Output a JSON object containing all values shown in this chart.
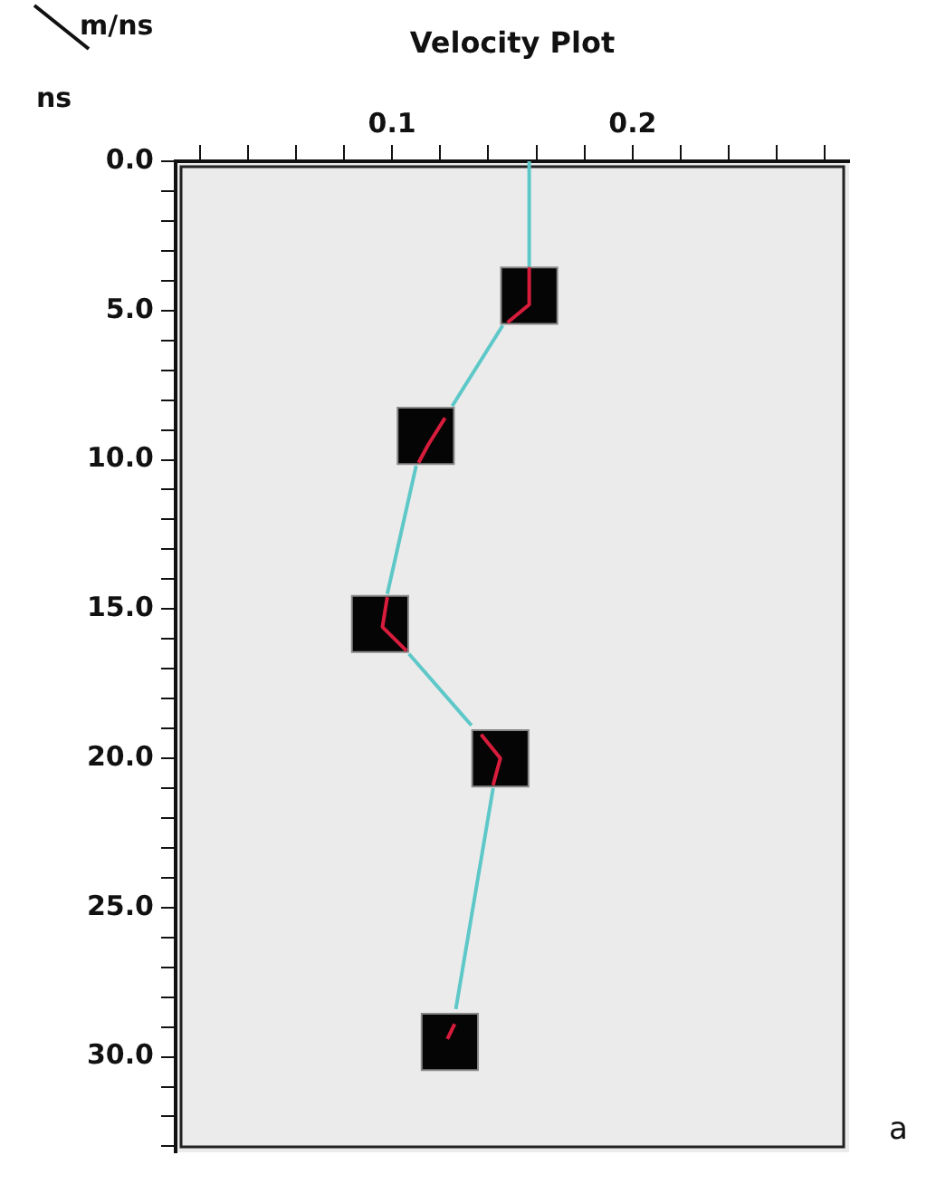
{
  "chart_data": {
    "type": "line",
    "title": "Velocity Plot",
    "xlabel": "m/ns",
    "ylabel": "ns",
    "annotations": [
      "a"
    ],
    "xlim": [
      0.01,
      0.29
    ],
    "ylim": [
      33.2,
      0
    ],
    "xticks": [
      {
        "value": 0.02,
        "label": null
      },
      {
        "value": 0.04,
        "label": null
      },
      {
        "value": 0.06,
        "label": null
      },
      {
        "value": 0.08,
        "label": null
      },
      {
        "value": 0.1,
        "label": "0.1"
      },
      {
        "value": 0.12,
        "label": null
      },
      {
        "value": 0.14,
        "label": null
      },
      {
        "value": 0.16,
        "label": null
      },
      {
        "value": 0.18,
        "label": null
      },
      {
        "value": 0.2,
        "label": "0.2"
      },
      {
        "value": 0.22,
        "label": null
      },
      {
        "value": 0.24,
        "label": null
      },
      {
        "value": 0.26,
        "label": null
      },
      {
        "value": 0.28,
        "label": null
      }
    ],
    "yticks": [
      {
        "value": 0,
        "label": "0.0"
      },
      {
        "value": 1,
        "label": null
      },
      {
        "value": 2,
        "label": null
      },
      {
        "value": 3,
        "label": null
      },
      {
        "value": 4,
        "label": null
      },
      {
        "value": 5,
        "label": "5.0"
      },
      {
        "value": 6,
        "label": null
      },
      {
        "value": 7,
        "label": null
      },
      {
        "value": 8,
        "label": null
      },
      {
        "value": 9,
        "label": null
      },
      {
        "value": 10,
        "label": "10.0"
      },
      {
        "value": 11,
        "label": null
      },
      {
        "value": 12,
        "label": null
      },
      {
        "value": 13,
        "label": null
      },
      {
        "value": 14,
        "label": null
      },
      {
        "value": 15,
        "label": "15.0"
      },
      {
        "value": 16,
        "label": null
      },
      {
        "value": 17,
        "label": null
      },
      {
        "value": 18,
        "label": null
      },
      {
        "value": 19,
        "label": null
      },
      {
        "value": 20,
        "label": "20.0"
      },
      {
        "value": 21,
        "label": null
      },
      {
        "value": 22,
        "label": null
      },
      {
        "value": 23,
        "label": null
      },
      {
        "value": 24,
        "label": null
      },
      {
        "value": 25,
        "label": "25.0"
      },
      {
        "value": 26,
        "label": null
      },
      {
        "value": 27,
        "label": null
      },
      {
        "value": 28,
        "label": null
      },
      {
        "value": 29,
        "label": null
      },
      {
        "value": 30,
        "label": "30.0"
      },
      {
        "value": 31,
        "label": null
      },
      {
        "value": 32,
        "label": null
      },
      {
        "value": 33,
        "label": null
      }
    ],
    "grid": false,
    "legend": false,
    "series": [
      {
        "type": "line",
        "color": "#5ec8c8",
        "x": [
          0.157,
          0.157,
          null,
          0.146,
          0.125,
          null,
          0.11,
          0.098,
          null,
          0.107,
          0.133,
          null,
          0.142,
          0.1265
        ],
        "values": [
          0,
          3.5,
          null,
          5.5,
          8.2,
          null,
          10.2,
          14.5,
          null,
          16.5,
          18.9,
          null,
          21.0,
          28.4
        ]
      },
      {
        "type": "scatter",
        "color": "#050505",
        "marker": "square",
        "x": [
          0.157,
          0.114,
          0.095,
          0.145,
          0.124
        ],
        "values": [
          4.5,
          9.2,
          15.5,
          20.0,
          29.5
        ]
      },
      {
        "type": "line",
        "color": "#d81c3c",
        "x": [
          0.157,
          0.157,
          0.148,
          null,
          0.122,
          0.115,
          0.111,
          null,
          0.098,
          0.096,
          0.106,
          null,
          0.137,
          0.145,
          0.142,
          null,
          0.126,
          0.123
        ],
        "values": [
          3.6,
          4.8,
          5.4,
          null,
          8.6,
          9.5,
          10.1,
          null,
          14.6,
          15.6,
          16.4,
          null,
          19.2,
          20.0,
          20.9,
          null,
          28.9,
          29.4
        ]
      }
    ]
  }
}
